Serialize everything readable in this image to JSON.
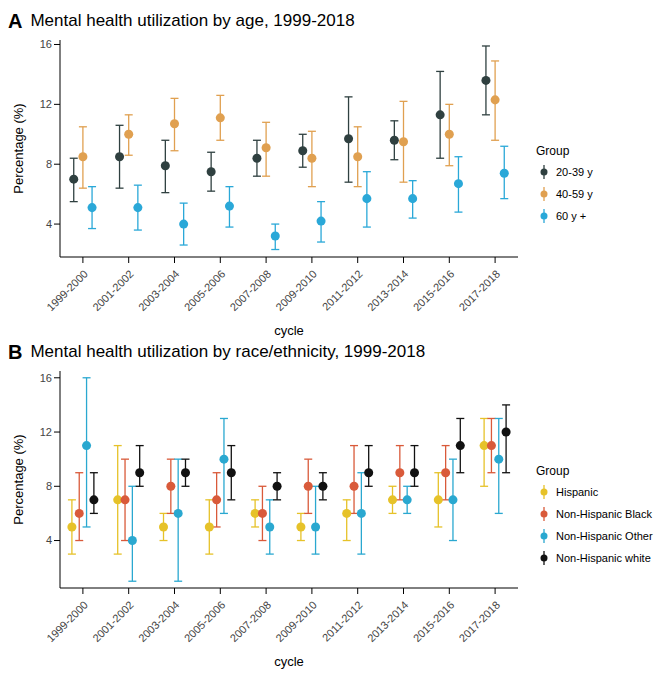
{
  "chart_data": [
    {
      "type": "scatter",
      "panel": "A",
      "title": "Mental health utilization by age, 1999-2018",
      "x_label": "cycle",
      "y_label": "Percentage (%)",
      "legend_title": "Group",
      "legend": "right",
      "grid": false,
      "marker": "circle",
      "categories": [
        "1999-2000",
        "2001-2002",
        "2003-2004",
        "2005-2006",
        "2007-2008",
        "2009-2010",
        "2011-2012",
        "2013-2014",
        "2015-2016",
        "2017-2018"
      ],
      "ylim": [
        1.8,
        16.3
      ],
      "yticks": [
        4,
        8,
        12,
        16
      ],
      "series": [
        {
          "name": "20-39 y",
          "color": "#2f4040",
          "values": [
            7.0,
            8.5,
            7.9,
            7.5,
            8.4,
            8.9,
            9.7,
            9.6,
            11.3,
            13.6
          ],
          "lower": [
            5.5,
            6.4,
            6.1,
            6.2,
            7.2,
            7.8,
            6.8,
            8.3,
            8.4,
            11.3
          ],
          "upper": [
            8.4,
            10.6,
            9.6,
            8.8,
            9.6,
            10.0,
            12.5,
            10.9,
            14.2,
            15.9
          ]
        },
        {
          "name": "40-59 y",
          "color": "#e0a050",
          "values": [
            8.5,
            10.0,
            10.7,
            11.1,
            9.1,
            8.4,
            8.5,
            9.5,
            10.0,
            12.3
          ],
          "lower": [
            6.4,
            8.6,
            8.9,
            9.6,
            7.2,
            6.5,
            6.5,
            6.8,
            7.9,
            9.6
          ],
          "upper": [
            10.5,
            11.3,
            12.4,
            12.6,
            10.8,
            10.2,
            10.5,
            12.2,
            12.0,
            14.9
          ]
        },
        {
          "name": "60 y +",
          "color": "#2aa8d8",
          "values": [
            5.1,
            5.1,
            4.0,
            5.2,
            3.2,
            4.2,
            5.7,
            5.7,
            6.7,
            7.4
          ],
          "lower": [
            3.7,
            3.6,
            2.6,
            3.8,
            2.3,
            2.8,
            3.8,
            4.4,
            4.8,
            5.7
          ],
          "upper": [
            6.5,
            6.6,
            5.4,
            6.5,
            4.0,
            5.5,
            7.5,
            6.9,
            8.5,
            9.2
          ]
        }
      ]
    },
    {
      "type": "scatter",
      "panel": "B",
      "title": "Mental health utilization by race/ethnicity, 1999-2018",
      "x_label": "cycle",
      "y_label": "Percentage (%)",
      "legend_title": "Group",
      "legend": "right",
      "grid": false,
      "marker": "circle",
      "categories": [
        "1999-2000",
        "2001-2002",
        "2003-2004",
        "2005-2006",
        "2007-2008",
        "2009-2010",
        "2011-2012",
        "2013-2014",
        "2015-2016",
        "2017-2018"
      ],
      "ylim": [
        0.5,
        16.5
      ],
      "yticks": [
        4,
        8,
        12,
        16
      ],
      "series": [
        {
          "name": "Hispanic",
          "color": "#e6c229",
          "values": [
            5,
            7,
            5,
            5,
            6,
            5,
            6,
            7,
            7,
            11
          ],
          "lower": [
            3,
            3,
            4,
            3,
            5,
            4,
            4,
            6,
            5,
            8
          ],
          "upper": [
            7,
            11,
            6,
            7,
            7,
            6,
            7,
            8,
            9,
            13
          ]
        },
        {
          "name": "Non-Hispanic Black",
          "color": "#d95a3a",
          "values": [
            6,
            7,
            8,
            7,
            6,
            8,
            8,
            9,
            9,
            11
          ],
          "lower": [
            4,
            4,
            6,
            5,
            4,
            6,
            6,
            7,
            7,
            9
          ],
          "upper": [
            9,
            10,
            10,
            9,
            8,
            10,
            11,
            11,
            11,
            13
          ]
        },
        {
          "name": "Non-Hispanic Other",
          "color": "#2aa8d0",
          "values": [
            11,
            4,
            6,
            10,
            5,
            5,
            6,
            7,
            7,
            10
          ],
          "lower": [
            5,
            1,
            1,
            6,
            3,
            3,
            3,
            6,
            4,
            6
          ],
          "upper": [
            16,
            8,
            10,
            13,
            7,
            8,
            9,
            8,
            10,
            13
          ]
        },
        {
          "name": "Non-Hispanic white",
          "color": "#111111",
          "values": [
            7,
            9,
            9,
            9,
            8,
            8,
            9,
            9,
            11,
            12
          ],
          "lower": [
            6,
            8,
            8,
            7,
            7,
            7,
            8,
            8,
            9,
            9
          ],
          "upper": [
            9,
            11,
            10,
            11,
            9,
            9,
            11,
            11,
            13,
            14
          ]
        }
      ]
    }
  ]
}
